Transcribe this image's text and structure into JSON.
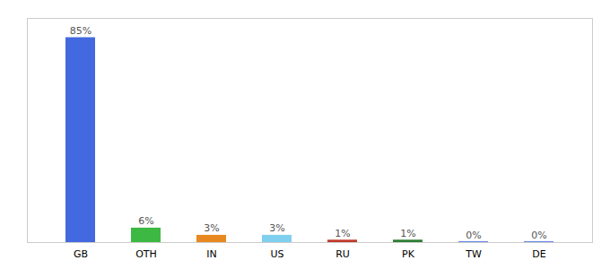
{
  "chart_data": {
    "type": "bar",
    "categories": [
      "GB",
      "OTH",
      "IN",
      "US",
      "RU",
      "PK",
      "TW",
      "DE"
    ],
    "values": [
      85,
      6,
      3,
      3,
      1,
      1,
      0.3,
      0.3
    ],
    "value_labels": [
      "85%",
      "6%",
      "3%",
      "3%",
      "1%",
      "1%",
      "0%",
      "0%"
    ],
    "colors": [
      "#4369e0",
      "#3db843",
      "#e88820",
      "#7fcfee",
      "#c0392b",
      "#2e7d32",
      "#4369e0",
      "#4369e0"
    ],
    "ylim": [
      0,
      93
    ],
    "data_labels": true,
    "tick_labels": "x",
    "grid": false
  }
}
